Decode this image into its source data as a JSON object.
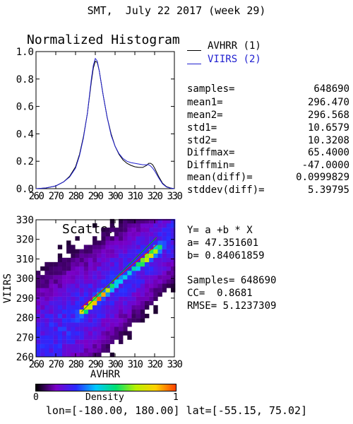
{
  "page_title": "SMT,  July 22 2017 (week 29)",
  "footer": "lon=[-180.00, 180.00] lat=[-55.15, 75.02]",
  "histogram": {
    "title": "Normalized Histogram",
    "legend": [
      {
        "label": "AVHRR (1)",
        "color": "#000000"
      },
      {
        "label": "VIIRS (2)",
        "color": "#2020d0"
      }
    ]
  },
  "stats": [
    {
      "label": "samples=",
      "value": "648690"
    },
    {
      "label": "mean1=",
      "value": "296.470"
    },
    {
      "label": "mean2=",
      "value": "296.568"
    },
    {
      "label": "std1=",
      "value": "10.6579"
    },
    {
      "label": "std2=",
      "value": "10.3208"
    },
    {
      "label": "Diffmax=",
      "value": "65.4000"
    },
    {
      "label": "Diffmin=",
      "value": "-47.0000"
    },
    {
      "label": "mean(diff)=",
      "value": "0.0999829"
    },
    {
      "label": "stddev(diff)=",
      "value": "5.39795"
    }
  ],
  "regression": {
    "formula": "Y= a +b * X",
    "a": "a= 47.351601",
    "b": "b= 0.84061859",
    "samples": "Samples= 648690",
    "cc": "CC=  0.8681",
    "rmse": "RMSE= 5.1237309"
  },
  "colorbar": {
    "label": "Density",
    "min": "0",
    "max": "1"
  },
  "chart_data": [
    {
      "type": "line",
      "title": "Normalized Histogram",
      "xlim": [
        260,
        330
      ],
      "ylim": [
        0,
        1.0
      ],
      "x_ticks": [
        "260",
        "270",
        "280",
        "290",
        "300",
        "310",
        "320",
        "330"
      ],
      "y_ticks": [
        "0.0",
        "0.2",
        "0.4",
        "0.6",
        "0.8",
        "1.0"
      ],
      "series": [
        {
          "name": "AVHRR (1)",
          "color": "#000000",
          "x": [
            260,
            265,
            270,
            274,
            277,
            280,
            282,
            284,
            286,
            288,
            289,
            290,
            291,
            292,
            294,
            296,
            298,
            300,
            302,
            304,
            306,
            308,
            310,
            312,
            314,
            316,
            317,
            318,
            319,
            320,
            322,
            324,
            326,
            328,
            330
          ],
          "y": [
            0.0,
            0.005,
            0.02,
            0.05,
            0.09,
            0.16,
            0.25,
            0.38,
            0.55,
            0.78,
            0.88,
            0.93,
            0.92,
            0.86,
            0.68,
            0.52,
            0.4,
            0.31,
            0.25,
            0.21,
            0.185,
            0.17,
            0.16,
            0.155,
            0.155,
            0.17,
            0.185,
            0.185,
            0.175,
            0.15,
            0.09,
            0.04,
            0.015,
            0.005,
            0.0
          ]
        },
        {
          "name": "VIIRS (2)",
          "color": "#2020d0",
          "x": [
            260,
            265,
            270,
            274,
            277,
            280,
            282,
            284,
            286,
            288,
            289,
            290,
            291,
            292,
            294,
            296,
            298,
            300,
            302,
            304,
            306,
            308,
            310,
            312,
            314,
            316,
            317,
            318,
            319,
            320,
            322,
            324,
            326,
            328,
            330
          ],
          "y": [
            0.0,
            0.005,
            0.02,
            0.05,
            0.085,
            0.15,
            0.24,
            0.37,
            0.55,
            0.8,
            0.9,
            0.95,
            0.93,
            0.86,
            0.68,
            0.52,
            0.39,
            0.31,
            0.255,
            0.22,
            0.2,
            0.19,
            0.185,
            0.18,
            0.175,
            0.175,
            0.175,
            0.165,
            0.15,
            0.13,
            0.08,
            0.035,
            0.012,
            0.004,
            0.0
          ]
        }
      ]
    },
    {
      "type": "heatmap",
      "title": "Scatter Plot",
      "xlabel": "AVHRR",
      "ylabel": "VIIRS",
      "xlim": [
        260,
        330
      ],
      "ylim": [
        260,
        330
      ],
      "x_ticks": [
        "260",
        "270",
        "280",
        "290",
        "300",
        "310",
        "320",
        "330"
      ],
      "y_ticks": [
        "260",
        "270",
        "280",
        "290",
        "300",
        "310",
        "320",
        "330"
      ],
      "colormap": [
        "#000000",
        "#7a00c8",
        "#2a2aff",
        "#00c8ff",
        "#00e070",
        "#b8f000",
        "#ffd000",
        "#ff4000"
      ],
      "regression_line": {
        "x": [
          283,
          321
        ],
        "y": [
          285.25,
          317.19
        ],
        "color": "#ff0000"
      },
      "identity_line": {
        "x": [
          283,
          321
        ],
        "y": [
          283,
          321
        ],
        "color": "#00b000"
      }
    }
  ]
}
